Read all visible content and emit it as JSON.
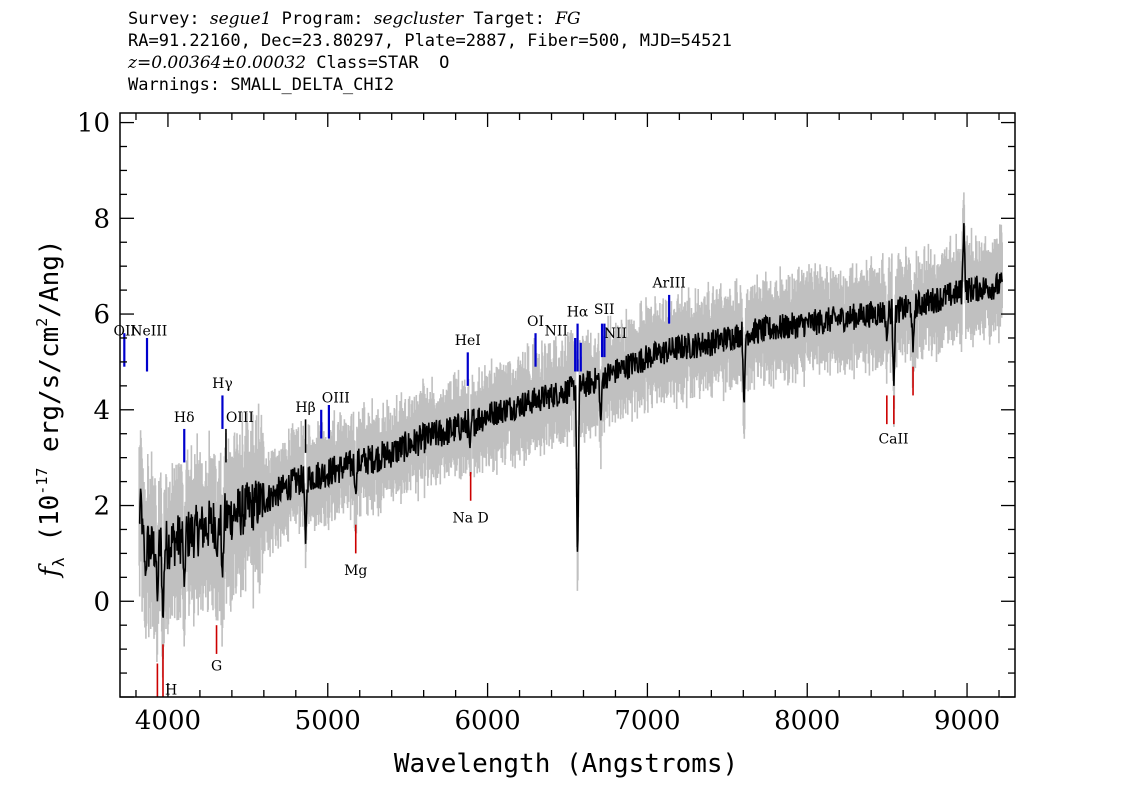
{
  "header": {
    "line1": {
      "survey_label": "Survey: ",
      "survey": "segue1",
      "program_label": " Program: ",
      "program": "segcluster",
      "target_label": " Target: ",
      "target": "FG"
    },
    "line2": "RA=91.22160, Dec=23.80297, Plate=2887, Fiber=500, MJD=54521",
    "line3": {
      "z": "z=0.00364±0.00032",
      "class_text": " Class=STAR  O"
    },
    "line4": "Warnings: SMALL_DELTA_CHI2"
  },
  "chart_data": {
    "type": "line",
    "xlabel": "Wavelength (Angstroms)",
    "ylabel_prefix": "f",
    "ylabel_sub": "λ",
    "ylabel_mid": " (10",
    "ylabel_exp": "-17",
    "ylabel_unit": " erg/s/cm",
    "ylabel_exp2": "2",
    "ylabel_end": "/Ang)",
    "xlim": [
      3700,
      9300
    ],
    "ylim": [
      -2,
      10.2
    ],
    "xticks": [
      4000,
      5000,
      6000,
      7000,
      8000,
      9000
    ],
    "yticks": [
      0,
      2,
      4,
      6,
      8,
      10
    ],
    "colors": {
      "flux": "#000000",
      "error_band": "#c0c0c0",
      "emission": "#0000cc",
      "absorption": "#cc0000",
      "other": "#000000"
    },
    "continuum_knots": [
      [
        3820,
        1.3
      ],
      [
        3900,
        1.1
      ],
      [
        4000,
        1.2
      ],
      [
        4200,
        1.5
      ],
      [
        4400,
        1.8
      ],
      [
        4600,
        2.1
      ],
      [
        4800,
        2.5
      ],
      [
        5000,
        2.7
      ],
      [
        5200,
        2.9
      ],
      [
        5400,
        3.1
      ],
      [
        5600,
        3.4
      ],
      [
        5800,
        3.6
      ],
      [
        6000,
        3.9
      ],
      [
        6200,
        4.1
      ],
      [
        6400,
        4.3
      ],
      [
        6600,
        4.5
      ],
      [
        6800,
        4.8
      ],
      [
        7000,
        5.1
      ],
      [
        7200,
        5.3
      ],
      [
        7400,
        5.4
      ],
      [
        7600,
        5.6
      ],
      [
        7800,
        5.7
      ],
      [
        8000,
        5.8
      ],
      [
        8200,
        5.9
      ],
      [
        8400,
        6.0
      ],
      [
        8600,
        6.1
      ],
      [
        8800,
        6.3
      ],
      [
        9000,
        6.5
      ],
      [
        9220,
        6.6
      ]
    ],
    "features": [
      [
        3830,
        2.4
      ],
      [
        3860,
        0.5
      ],
      [
        3934,
        0.0
      ],
      [
        3969,
        -0.5
      ],
      [
        4102,
        0.3
      ],
      [
        4308,
        0.9
      ],
      [
        4341,
        0.4
      ],
      [
        4861,
        1.2
      ],
      [
        5175,
        2.2
      ],
      [
        5890,
        3.2
      ],
      [
        6563,
        0.7
      ],
      [
        6708,
        3.7
      ],
      [
        7605,
        4.0
      ],
      [
        8498,
        5.4
      ],
      [
        8542,
        4.5
      ],
      [
        8662,
        5.2
      ],
      [
        8980,
        7.9
      ]
    ],
    "line_markers": [
      {
        "label": "OII",
        "x": 3727,
        "y0": 4.9,
        "y1": 5.6,
        "lx": 3730,
        "ly": 5.55,
        "kind": "emission"
      },
      {
        "label": "NeIII",
        "x": 3869,
        "y0": 4.8,
        "y1": 5.5,
        "lx": 3880,
        "ly": 5.55,
        "kind": "emission"
      },
      {
        "label": "Hδ",
        "x": 4102,
        "y0": 2.9,
        "y1": 3.6,
        "lx": 4102,
        "ly": 3.75,
        "kind": "emission"
      },
      {
        "label": "Hγ",
        "x": 4341,
        "y0": 3.6,
        "y1": 4.3,
        "lx": 4341,
        "ly": 4.45,
        "kind": "emission"
      },
      {
        "label": "OIII",
        "x": 4363,
        "y0": 2.9,
        "y1": 3.6,
        "lx": 4450,
        "ly": 3.75,
        "kind": "other"
      },
      {
        "label": "Hβ",
        "x": 4861,
        "y0": 3.1,
        "y1": 3.8,
        "lx": 4861,
        "ly": 3.95,
        "kind": "other"
      },
      {
        "label": "OIII",
        "x": 4959,
        "y0": 3.4,
        "y1": 4.0,
        "lx": 5050,
        "ly": 4.15,
        "kind": "emission"
      },
      {
        "label": "OIII",
        "x": 5007,
        "y0": 3.4,
        "y1": 4.1,
        "lx": 5050,
        "ly": 4.15,
        "kind": "emission"
      },
      {
        "label": "HeI",
        "x": 5876,
        "y0": 4.5,
        "y1": 5.2,
        "lx": 5876,
        "ly": 5.35,
        "kind": "emission"
      },
      {
        "label": "OI",
        "x": 6300,
        "y0": 4.9,
        "y1": 5.6,
        "lx": 6300,
        "ly": 5.75,
        "kind": "emission"
      },
      {
        "label": "NII",
        "x": 6548,
        "y0": 4.8,
        "y1": 5.5,
        "lx": 6430,
        "ly": 5.55,
        "kind": "emission"
      },
      {
        "label": "Hα",
        "x": 6563,
        "y0": 4.8,
        "y1": 5.8,
        "lx": 6563,
        "ly": 5.95,
        "kind": "emission"
      },
      {
        "label": "NII",
        "x": 6583,
        "y0": 4.8,
        "y1": 5.4,
        "lx": 6800,
        "ly": 5.5,
        "kind": "emission"
      },
      {
        "label": "SII",
        "x": 6716,
        "y0": 5.1,
        "y1": 5.8,
        "lx": 6730,
        "ly": 6.0,
        "kind": "emission"
      },
      {
        "label": "SII",
        "x": 6731,
        "y0": 5.1,
        "y1": 5.8,
        "lx": 6730,
        "ly": 6.0,
        "kind": "emission"
      },
      {
        "label": "ArIII",
        "x": 7136,
        "y0": 5.8,
        "y1": 6.4,
        "lx": 7136,
        "ly": 6.55,
        "kind": "emission"
      },
      {
        "label": "H",
        "x": 3934,
        "y0": -2.0,
        "y1": -1.3,
        "lx": 4020,
        "ly": -1.95,
        "kind": "absorption"
      },
      {
        "label": "",
        "x": 3969,
        "y0": -2.0,
        "y1": -0.9,
        "lx": 0,
        "ly": 0,
        "kind": "absorption"
      },
      {
        "label": "G",
        "x": 4304,
        "y0": -1.1,
        "y1": -0.5,
        "lx": 4304,
        "ly": -1.45,
        "kind": "absorption"
      },
      {
        "label": "Mg",
        "x": 5175,
        "y0": 1.0,
        "y1": 1.6,
        "lx": 5175,
        "ly": 0.55,
        "kind": "absorption"
      },
      {
        "label": "Na D",
        "x": 5894,
        "y0": 2.1,
        "y1": 2.7,
        "lx": 5894,
        "ly": 1.65,
        "kind": "absorption"
      },
      {
        "label": "CaII",
        "x": 8498,
        "y0": 3.7,
        "y1": 4.3,
        "lx": 8540,
        "ly": 3.3,
        "kind": "absorption"
      },
      {
        "label": "",
        "x": 8542,
        "y0": 3.7,
        "y1": 4.3,
        "lx": 0,
        "ly": 0,
        "kind": "absorption"
      },
      {
        "label": "",
        "x": 8662,
        "y0": 4.3,
        "y1": 4.9,
        "lx": 0,
        "ly": 0,
        "kind": "absorption"
      }
    ]
  }
}
